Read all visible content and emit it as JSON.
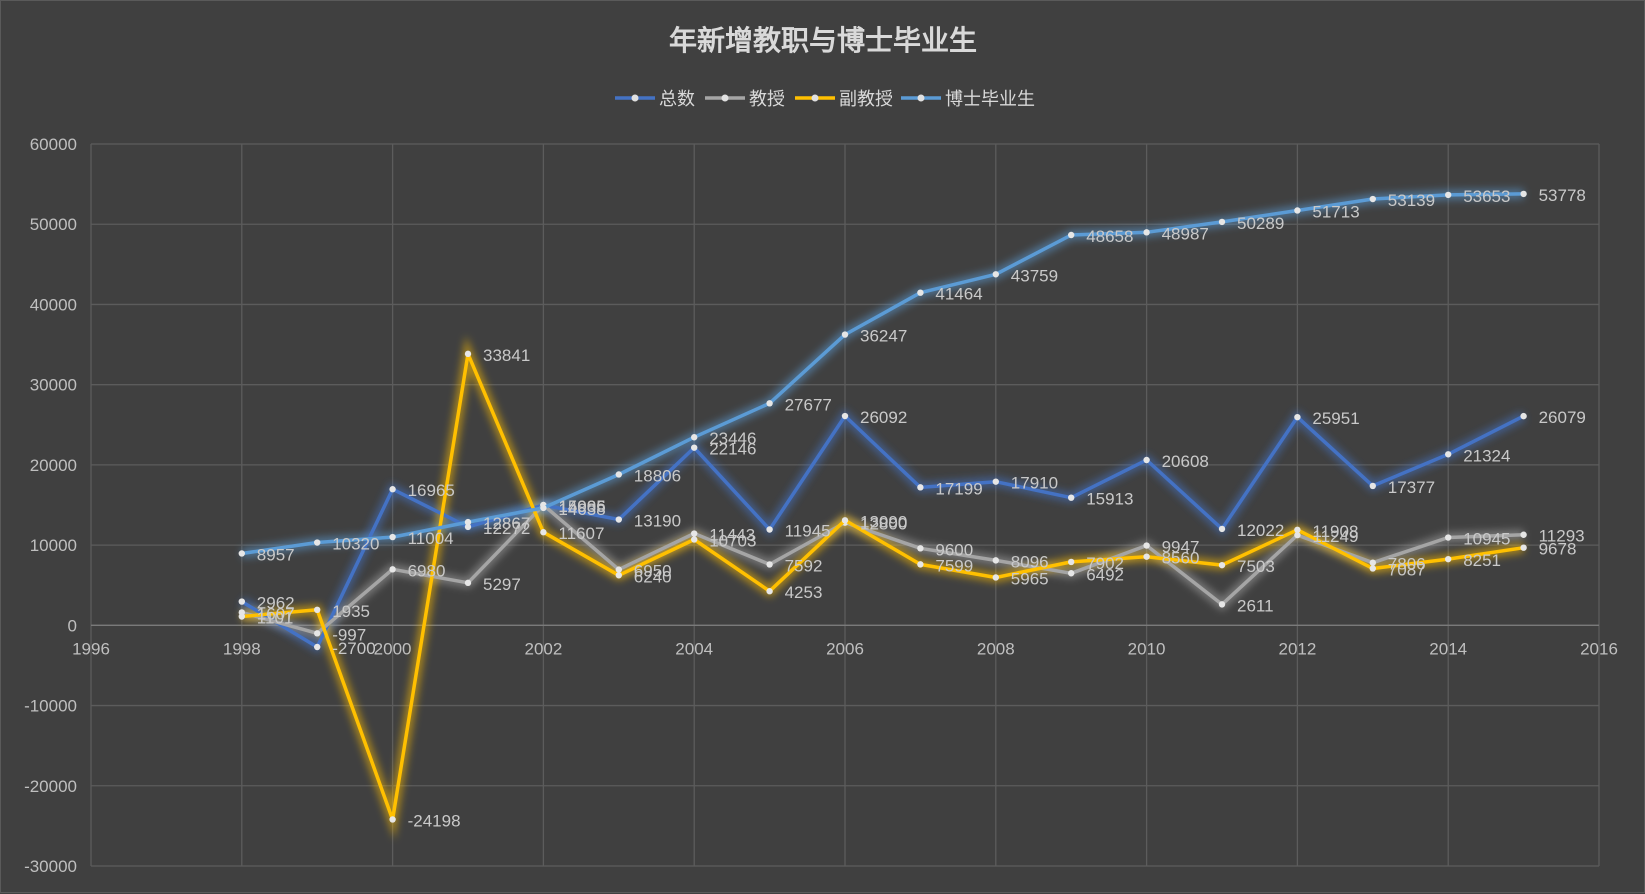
{
  "chart_data": {
    "type": "line",
    "title": "年新增教职与博士毕业生",
    "legend_position": "top",
    "grid": true,
    "xlim": [
      1996,
      2016
    ],
    "ylim": [
      -30000,
      60000
    ],
    "x_ticks": [
      "1996",
      "1998",
      "2000",
      "2002",
      "2004",
      "2006",
      "2008",
      "2010",
      "2012",
      "2014",
      "2016"
    ],
    "y_ticks": [
      "60000",
      "50000",
      "40000",
      "30000",
      "20000",
      "10000",
      "0",
      "-10000",
      "-20000",
      "-30000"
    ],
    "series": [
      {
        "name": "总数",
        "color": "#4472c4",
        "x": [
          1998,
          1999,
          2000,
          2001,
          2002,
          2003,
          2004,
          2005,
          2006,
          2007,
          2008,
          2009,
          2010,
          2011,
          2012,
          2013,
          2014,
          2015
        ],
        "values": [
          2962,
          -2700,
          16965,
          12272,
          14986,
          13190,
          22146,
          11945,
          26092,
          17199,
          17910,
          15913,
          20608,
          12022,
          25951,
          17377,
          21324,
          26079
        ]
      },
      {
        "name": "教授",
        "color": "#a5a5a5",
        "x": [
          1998,
          1999,
          2000,
          2001,
          2002,
          2003,
          2004,
          2005,
          2006,
          2007,
          2008,
          2009,
          2010,
          2011,
          2012,
          2013,
          2014,
          2015
        ],
        "values": [
          1607,
          -997,
          6980,
          5297,
          15005,
          6950,
          11443,
          7592,
          12800,
          9600,
          8096,
          6492,
          9947,
          2611,
          11249,
          7806,
          10945,
          11293
        ]
      },
      {
        "name": "副教授",
        "color": "#ffc000",
        "x": [
          1998,
          1999,
          2000,
          2001,
          2002,
          2003,
          2004,
          2005,
          2006,
          2007,
          2008,
          2009,
          2010,
          2011,
          2012,
          2013,
          2014,
          2015
        ],
        "values": [
          1101,
          1935,
          -24198,
          33841,
          11607,
          6240,
          10703,
          4253,
          13090,
          7599,
          5965,
          7902,
          8560,
          7503,
          11908,
          7087,
          8251,
          9678
        ]
      },
      {
        "name": "博士毕业生",
        "color": "#5b9bd5",
        "x": [
          1998,
          1999,
          2000,
          2001,
          2002,
          2003,
          2004,
          2005,
          2006,
          2007,
          2008,
          2009,
          2010,
          2011,
          2012,
          2013,
          2014,
          2015
        ],
        "values": [
          8957,
          10320,
          11004,
          12867,
          14638,
          18806,
          23446,
          27677,
          36247,
          41464,
          43759,
          48658,
          48987,
          50289,
          51713,
          53139,
          53653,
          53778
        ]
      }
    ]
  }
}
